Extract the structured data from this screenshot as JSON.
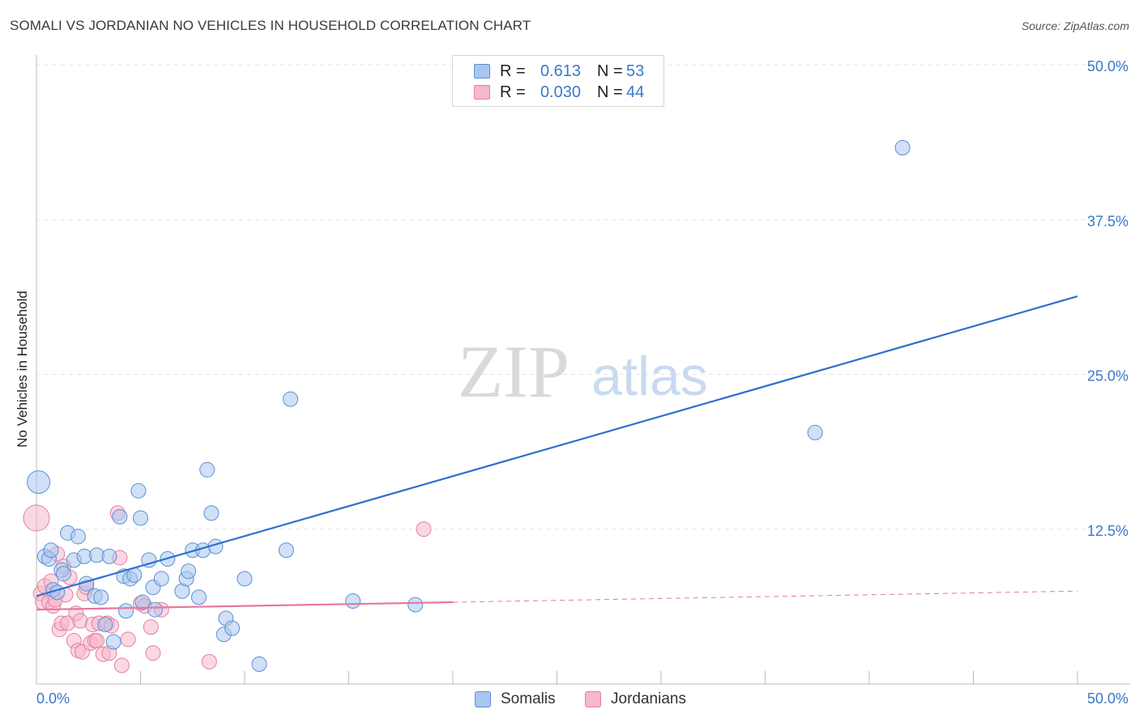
{
  "title": "SOMALI VS JORDANIAN NO VEHICLES IN HOUSEHOLD CORRELATION CHART",
  "source": "Source: ZipAtlas.com",
  "watermark": {
    "zip": "ZIP",
    "atlas": "atlas"
  },
  "legend_top": {
    "rows": [
      {
        "r_label": "R =",
        "r_value": "0.613",
        "n_label": "N =",
        "n_value": "53"
      },
      {
        "r_label": "R =",
        "r_value": "0.030",
        "n_label": "N =",
        "n_value": "44"
      }
    ]
  },
  "legend_bottom": {
    "somalis": "Somalis",
    "jordanians": "Jordanians"
  },
  "colors": {
    "somali_fill": "#a9c6ee",
    "somali_stroke": "#5b8fd4",
    "somali_line": "#2f6fcf",
    "jordan_fill": "#f6b8cb",
    "jordan_stroke": "#e27fa0",
    "jordan_line": "#e8769c",
    "axis_text": "#3a78c9",
    "grid": "#e4e4e4"
  },
  "chart_data": {
    "type": "scatter",
    "xlabel": "",
    "ylabel": "No Vehicles in Household",
    "xlim": [
      0,
      50
    ],
    "ylim": [
      0,
      50
    ],
    "x_tick_labels": [
      "0.0%",
      "50.0%"
    ],
    "y_ticks": [
      12.5,
      25.0,
      37.5,
      50.0
    ],
    "y_tick_labels": [
      "12.5%",
      "25.0%",
      "37.5%",
      "50.0%"
    ],
    "grid": true,
    "series": [
      {
        "name": "Somalis",
        "R": 0.613,
        "N": 53,
        "trend": {
          "x0": 0,
          "y0": 7.1,
          "x1": 50,
          "y1": 31.3,
          "extrapolated_from": null
        },
        "points": [
          [
            0.1,
            16.3,
            14
          ],
          [
            0.4,
            10.3,
            9
          ],
          [
            0.6,
            10.1,
            9
          ],
          [
            0.7,
            10.8,
            9
          ],
          [
            0.8,
            7.6,
            9
          ],
          [
            1.0,
            7.4,
            9
          ],
          [
            1.2,
            9.2,
            9
          ],
          [
            1.3,
            8.9,
            9
          ],
          [
            1.5,
            12.2,
            9
          ],
          [
            1.8,
            10.0,
            9
          ],
          [
            2.0,
            11.9,
            9
          ],
          [
            2.3,
            10.3,
            9
          ],
          [
            2.4,
            8.1,
            9
          ],
          [
            2.8,
            7.1,
            9
          ],
          [
            2.9,
            10.4,
            9
          ],
          [
            3.1,
            7.0,
            9
          ],
          [
            3.3,
            4.8,
            9
          ],
          [
            3.5,
            10.3,
            9
          ],
          [
            3.7,
            3.4,
            9
          ],
          [
            4.0,
            13.5,
            9
          ],
          [
            4.2,
            8.7,
            9
          ],
          [
            4.3,
            5.9,
            9
          ],
          [
            4.5,
            8.5,
            9
          ],
          [
            4.7,
            8.8,
            9
          ],
          [
            4.9,
            15.6,
            9
          ],
          [
            5.0,
            13.4,
            9
          ],
          [
            5.1,
            6.6,
            9
          ],
          [
            5.4,
            10.0,
            9
          ],
          [
            5.6,
            7.8,
            9
          ],
          [
            5.7,
            6.0,
            9
          ],
          [
            6.0,
            8.5,
            9
          ],
          [
            6.3,
            10.1,
            9
          ],
          [
            7.0,
            7.5,
            9
          ],
          [
            7.2,
            8.5,
            9
          ],
          [
            7.3,
            9.1,
            9
          ],
          [
            7.5,
            10.8,
            9
          ],
          [
            7.8,
            7.0,
            9
          ],
          [
            8.0,
            10.8,
            9
          ],
          [
            8.2,
            17.3,
            9
          ],
          [
            8.4,
            13.8,
            9
          ],
          [
            8.6,
            11.1,
            9
          ],
          [
            9.0,
            4.0,
            9
          ],
          [
            9.1,
            5.3,
            9
          ],
          [
            9.4,
            4.5,
            9
          ],
          [
            10.0,
            8.5,
            9
          ],
          [
            10.7,
            1.6,
            9
          ],
          [
            12.0,
            10.8,
            9
          ],
          [
            12.2,
            23.0,
            9
          ],
          [
            15.2,
            6.7,
            9
          ],
          [
            18.2,
            6.4,
            9
          ],
          [
            37.4,
            20.3,
            9
          ],
          [
            41.6,
            43.3,
            9
          ]
        ]
      },
      {
        "name": "Jordanians",
        "R": 0.03,
        "N": 44,
        "trend": {
          "x0": 0,
          "y0": 6.0,
          "x1": 20,
          "y1": 6.6,
          "dash_to_x": 50,
          "dash_to_y": 7.5
        },
        "points": [
          [
            0.0,
            13.4,
            16
          ],
          [
            0.2,
            7.3,
            9
          ],
          [
            0.3,
            6.6,
            9
          ],
          [
            0.4,
            7.9,
            9
          ],
          [
            0.6,
            6.6,
            9
          ],
          [
            0.7,
            8.3,
            9
          ],
          [
            0.8,
            6.3,
            9
          ],
          [
            0.9,
            6.8,
            9
          ],
          [
            1.0,
            10.5,
            9
          ],
          [
            1.1,
            4.4,
            9
          ],
          [
            1.2,
            4.9,
            9
          ],
          [
            1.3,
            9.5,
            9
          ],
          [
            1.4,
            7.2,
            9
          ],
          [
            1.5,
            4.9,
            9
          ],
          [
            1.6,
            8.6,
            9
          ],
          [
            1.8,
            3.5,
            9
          ],
          [
            1.9,
            5.7,
            9
          ],
          [
            2.0,
            2.7,
            9
          ],
          [
            2.1,
            5.1,
            9
          ],
          [
            2.2,
            2.6,
            9
          ],
          [
            2.3,
            7.3,
            9
          ],
          [
            2.4,
            7.8,
            9
          ],
          [
            2.6,
            3.3,
            9
          ],
          [
            2.7,
            4.8,
            9
          ],
          [
            2.8,
            3.5,
            9
          ],
          [
            2.9,
            3.5,
            9
          ],
          [
            3.0,
            4.9,
            9
          ],
          [
            3.2,
            2.4,
            9
          ],
          [
            3.4,
            4.9,
            9
          ],
          [
            3.5,
            2.5,
            9
          ],
          [
            3.6,
            4.7,
            9
          ],
          [
            3.9,
            13.8,
            9
          ],
          [
            4.0,
            10.2,
            9
          ],
          [
            4.1,
            1.5,
            9
          ],
          [
            4.4,
            3.6,
            9
          ],
          [
            5.0,
            6.5,
            9
          ],
          [
            5.2,
            6.3,
            9
          ],
          [
            5.5,
            4.6,
            9
          ],
          [
            5.6,
            2.5,
            9
          ],
          [
            6.0,
            6.0,
            9
          ],
          [
            8.3,
            1.8,
            9
          ],
          [
            18.6,
            12.5,
            9
          ]
        ]
      }
    ]
  }
}
